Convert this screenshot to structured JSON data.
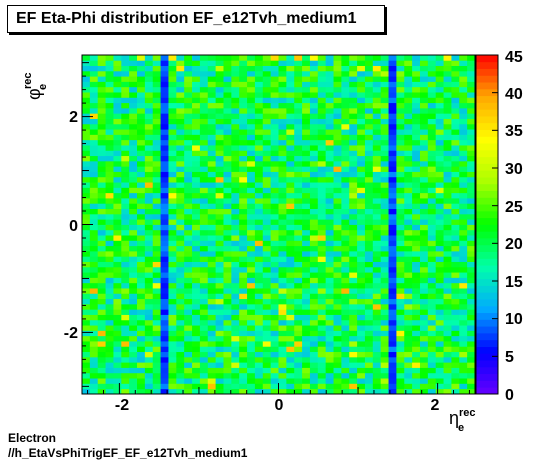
{
  "title": "EF Eta-Phi distribution EF_e12Tvh_medium1",
  "footer": {
    "line1": "Electron",
    "line2": "//h_EtaVsPhiTrigEF_EF_e12Tvh_medium1"
  },
  "chart_data": {
    "type": "heatmap",
    "title": "EF Eta-Phi distribution EF_e12Tvh_medium1",
    "xlabel": {
      "symbol": "η",
      "superscript": "rec",
      "subscript": "e"
    },
    "ylabel": {
      "symbol": "φ",
      "superscript": "rec",
      "subscript": "e"
    },
    "xlim": [
      -2.47,
      2.47
    ],
    "ylim": [
      -3.1416,
      3.1416
    ],
    "zlim": [
      0,
      45
    ],
    "x_bins": 50,
    "y_bins": 64,
    "x_ticks": [
      {
        "value": -2,
        "label": "-2"
      },
      {
        "value": 0,
        "label": "0"
      },
      {
        "value": 2,
        "label": "2"
      }
    ],
    "y_ticks": [
      {
        "value": -2,
        "label": "-2"
      },
      {
        "value": 0,
        "label": "0"
      },
      {
        "value": 2,
        "label": "2"
      }
    ],
    "z_ticks": [
      {
        "value": 0,
        "label": "0"
      },
      {
        "value": 5,
        "label": "5"
      },
      {
        "value": 10,
        "label": "10"
      },
      {
        "value": 15,
        "label": "15"
      },
      {
        "value": 20,
        "label": "20"
      },
      {
        "value": 25,
        "label": "25"
      },
      {
        "value": 30,
        "label": "30"
      },
      {
        "value": 35,
        "label": "35"
      },
      {
        "value": 40,
        "label": "40"
      },
      {
        "value": 45,
        "label": "45"
      }
    ],
    "typical_bin_content": 20,
    "low_bands_eta": [
      -1.47,
      1.42
    ],
    "low_band_content": 8
  }
}
